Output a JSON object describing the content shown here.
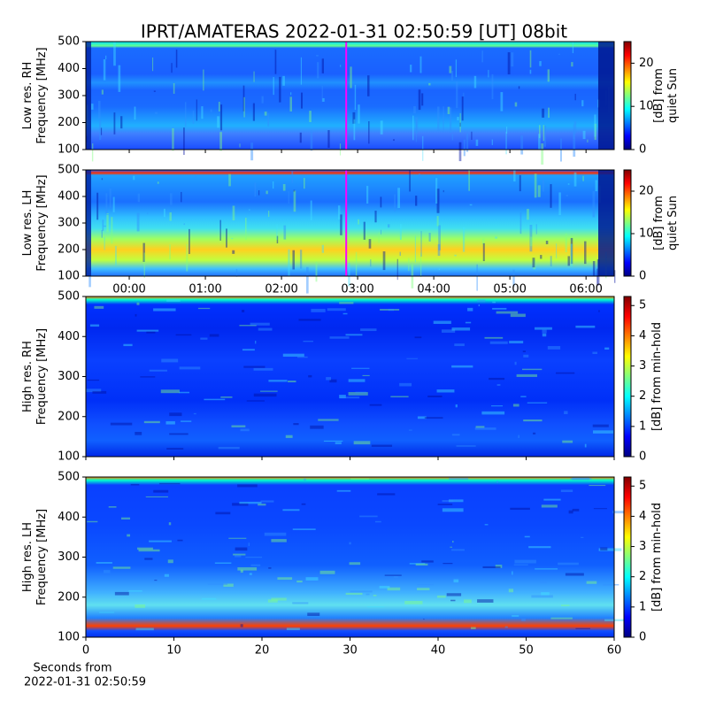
{
  "chart_data": [
    {
      "type": "spectrogram",
      "title": "IPRT/AMATERAS 2022-01-31 02:50:59 [UT]   08bit",
      "ylabel": [
        "Low res. RH",
        "Frequency [MHz]"
      ],
      "ylim": [
        100,
        500
      ],
      "yticks": [
        100,
        200,
        300,
        400,
        500
      ],
      "xlim": [
        -0.57,
        6.37
      ],
      "marker": {
        "x": 2.85,
        "color": "#ff00ff"
      },
      "colorbar": {
        "label": [
          "[dB] from",
          "quiet Sun"
        ],
        "zlim": [
          0,
          25
        ],
        "zticks": [
          0,
          10,
          20
        ]
      }
    },
    {
      "type": "spectrogram",
      "ylabel": [
        "Low res. LH",
        "Frequency [MHz]"
      ],
      "ylim": [
        100,
        500
      ],
      "yticks": [
        100,
        200,
        300,
        400,
        500
      ],
      "xlim": [
        -0.57,
        6.37
      ],
      "xticks": [
        {
          "value": 0,
          "label": "00:00"
        },
        {
          "value": 1,
          "label": "01:00"
        },
        {
          "value": 2,
          "label": "02:00"
        },
        {
          "value": 3,
          "label": "03:00"
        },
        {
          "value": 4,
          "label": "04:00"
        },
        {
          "value": 5,
          "label": "05:00"
        },
        {
          "value": 6,
          "label": "06:00"
        }
      ],
      "marker": {
        "x": 2.85,
        "color": "#ff00ff"
      },
      "colorbar": {
        "label": [
          "[dB] from",
          "quiet Sun"
        ],
        "zlim": [
          0,
          25
        ],
        "zticks": [
          0,
          10,
          20
        ]
      }
    },
    {
      "type": "spectrogram",
      "ylabel": [
        "High res. RH",
        "Frequency [MHz]"
      ],
      "ylim": [
        100,
        500
      ],
      "yticks": [
        100,
        200,
        300,
        400,
        500
      ],
      "xlim": [
        0,
        60
      ],
      "colorbar": {
        "label": [
          "[dB] from min-hold"
        ],
        "zlim": [
          0,
          5.3
        ],
        "zticks": [
          0,
          1,
          2,
          3,
          4,
          5
        ]
      }
    },
    {
      "type": "spectrogram",
      "ylabel": [
        "High res. LH",
        "Frequency [MHz]"
      ],
      "ylim": [
        100,
        500
      ],
      "yticks": [
        100,
        200,
        300,
        400,
        500
      ],
      "xlim": [
        0,
        60
      ],
      "xticks": [
        0,
        10,
        20,
        30,
        40,
        50,
        60
      ],
      "xlabel": [
        "Seconds from",
        "2022-01-31 02:50:59"
      ],
      "colorbar": {
        "label": [
          "[dB] from min-hold"
        ],
        "zlim": [
          0,
          5.3
        ],
        "zticks": [
          0,
          1,
          2,
          3,
          4,
          5
        ]
      }
    }
  ]
}
